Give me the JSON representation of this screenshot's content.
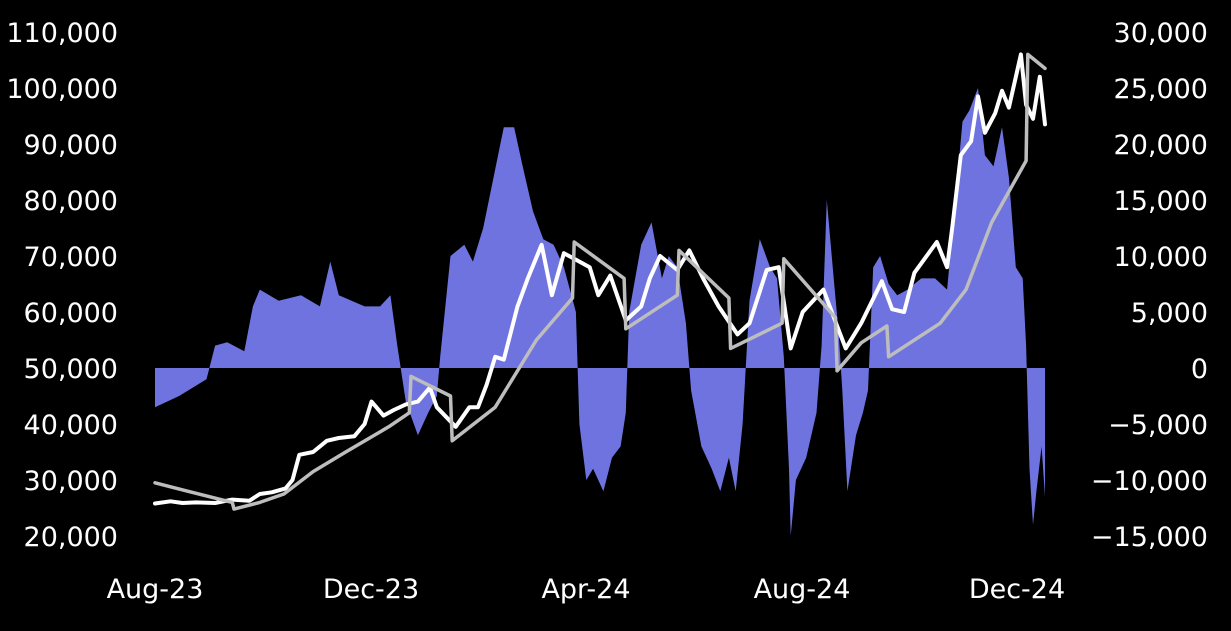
{
  "chart_data": {
    "type": "line",
    "title": "",
    "xlabel": "",
    "ylabel_left": "",
    "ylabel_right": "",
    "grid": false,
    "legend": "none",
    "x_ticks": [
      "Aug-23",
      "Dec-23",
      "Apr-24",
      "Aug-24",
      "Dec-24"
    ],
    "y_left": {
      "lim": [
        20000,
        110000
      ],
      "ticks": [
        "20,000",
        "30,000",
        "40,000",
        "50,000",
        "60,000",
        "70,000",
        "80,000",
        "90,000",
        "100,000",
        "110,000"
      ]
    },
    "y_right": {
      "lim": [
        -15000,
        30000
      ],
      "ticks": [
        "−15,000",
        "−10,000",
        "−5,000",
        "0",
        "5,000",
        "10,000",
        "15,000",
        "20,000",
        "25,000",
        "30,000"
      ]
    },
    "x_range": [
      "2023-08-01",
      "2024-12-31"
    ],
    "series": [
      {
        "type": "area",
        "axis": "right",
        "color": "#6f73e0",
        "points": [
          [
            "2023-08-01",
            -3500
          ],
          [
            "2023-08-15",
            -2500
          ],
          [
            "2023-08-31",
            -1000
          ],
          [
            "2023-09-05",
            2000
          ],
          [
            "2023-09-12",
            2300
          ],
          [
            "2023-09-22",
            1500
          ],
          [
            "2023-09-27",
            5500
          ],
          [
            "2023-10-01",
            7000
          ],
          [
            "2023-10-12",
            6000
          ],
          [
            "2023-10-25",
            6500
          ],
          [
            "2023-11-05",
            5500
          ],
          [
            "2023-11-11",
            9500
          ],
          [
            "2023-11-16",
            6500
          ],
          [
            "2023-12-01",
            5500
          ],
          [
            "2023-12-10",
            5500
          ],
          [
            "2023-12-16",
            6500
          ],
          [
            "2023-12-20",
            2000
          ],
          [
            "2023-12-25",
            -3000
          ],
          [
            "2024-01-01",
            -6000
          ],
          [
            "2024-01-07",
            -4000
          ],
          [
            "2024-01-12",
            -2500
          ],
          [
            "2024-01-14",
            1000
          ],
          [
            "2024-01-20",
            10000
          ],
          [
            "2024-01-28",
            11000
          ],
          [
            "2024-02-02",
            9500
          ],
          [
            "2024-02-08",
            12500
          ],
          [
            "2024-02-14",
            17000
          ],
          [
            "2024-02-20",
            21500
          ],
          [
            "2024-02-26",
            21500
          ],
          [
            "2024-03-02",
            18000
          ],
          [
            "2024-03-08",
            14000
          ],
          [
            "2024-03-14",
            11500
          ],
          [
            "2024-03-20",
            11000
          ],
          [
            "2024-03-26",
            9000
          ],
          [
            "2024-04-02",
            5000
          ],
          [
            "2024-04-04",
            -5000
          ],
          [
            "2024-04-08",
            -10000
          ],
          [
            "2024-04-12",
            -9000
          ],
          [
            "2024-04-18",
            -11000
          ],
          [
            "2024-04-23",
            -8000
          ],
          [
            "2024-04-28",
            -7000
          ],
          [
            "2024-05-01",
            -4000
          ],
          [
            "2024-05-03",
            5000
          ],
          [
            "2024-05-10",
            11000
          ],
          [
            "2024-05-16",
            13000
          ],
          [
            "2024-05-22",
            8000
          ],
          [
            "2024-05-26",
            10000
          ],
          [
            "2024-05-31",
            9000
          ],
          [
            "2024-06-05",
            4000
          ],
          [
            "2024-06-08",
            -2000
          ],
          [
            "2024-06-14",
            -7000
          ],
          [
            "2024-06-20",
            -9000
          ],
          [
            "2024-06-25",
            -11000
          ],
          [
            "2024-06-30",
            -8000
          ],
          [
            "2024-07-04",
            -11000
          ],
          [
            "2024-07-08",
            -5000
          ],
          [
            "2024-07-12",
            6000
          ],
          [
            "2024-07-18",
            11500
          ],
          [
            "2024-07-24",
            9000
          ],
          [
            "2024-07-28",
            8000
          ],
          [
            "2024-08-01",
            1000
          ],
          [
            "2024-08-04",
            -9000
          ],
          [
            "2024-08-05",
            -15000
          ],
          [
            "2024-08-08",
            -10000
          ],
          [
            "2024-08-14",
            -8000
          ],
          [
            "2024-08-20",
            -4000
          ],
          [
            "2024-08-23",
            2000
          ],
          [
            "2024-08-26",
            15000
          ],
          [
            "2024-08-30",
            8000
          ],
          [
            "2024-09-02",
            3000
          ],
          [
            "2024-09-04",
            -2000
          ],
          [
            "2024-09-07",
            -11000
          ],
          [
            "2024-09-12",
            -6000
          ],
          [
            "2024-09-16",
            -4000
          ],
          [
            "2024-09-19",
            -2000
          ],
          [
            "2024-09-22",
            9000
          ],
          [
            "2024-09-26",
            10000
          ],
          [
            "2024-10-01",
            7500
          ],
          [
            "2024-10-06",
            6500
          ],
          [
            "2024-10-12",
            7000
          ],
          [
            "2024-10-20",
            8000
          ],
          [
            "2024-10-28",
            8000
          ],
          [
            "2024-11-04",
            7000
          ],
          [
            "2024-11-10",
            17000
          ],
          [
            "2024-11-13",
            22000
          ],
          [
            "2024-11-17",
            23000
          ],
          [
            "2024-11-22",
            25000
          ],
          [
            "2024-11-26",
            19000
          ],
          [
            "2024-12-01",
            18000
          ],
          [
            "2024-12-06",
            21500
          ],
          [
            "2024-12-10",
            17000
          ],
          [
            "2024-12-14",
            9000
          ],
          [
            "2024-12-18",
            8000
          ],
          [
            "2024-12-20",
            2000
          ],
          [
            "2024-12-22",
            -9000
          ],
          [
            "2024-12-24",
            -14000
          ],
          [
            "2024-12-26",
            -11000
          ],
          [
            "2024-12-29",
            -7000
          ],
          [
            "2024-12-31",
            -11500
          ]
        ]
      },
      {
        "type": "line",
        "axis": "left",
        "color": "#ffffff",
        "points": [
          [
            "2023-08-01",
            25800
          ],
          [
            "2023-08-10",
            26200
          ],
          [
            "2023-08-17",
            25900
          ],
          [
            "2023-08-25",
            26000
          ],
          [
            "2023-09-05",
            25900
          ],
          [
            "2023-09-15",
            26500
          ],
          [
            "2023-09-25",
            26300
          ],
          [
            "2023-10-01",
            27500
          ],
          [
            "2023-10-08",
            27800
          ],
          [
            "2023-10-16",
            28500
          ],
          [
            "2023-10-20",
            30000
          ],
          [
            "2023-10-24",
            34500
          ],
          [
            "2023-11-01",
            35000
          ],
          [
            "2023-11-09",
            37000
          ],
          [
            "2023-11-16",
            37500
          ],
          [
            "2023-11-25",
            37800
          ],
          [
            "2023-12-01",
            40000
          ],
          [
            "2023-12-05",
            44000
          ],
          [
            "2023-12-12",
            41500
          ],
          [
            "2023-12-18",
            42500
          ],
          [
            "2023-12-25",
            43500
          ],
          [
            "2024-01-01",
            44000
          ],
          [
            "2024-01-08",
            46500
          ],
          [
            "2024-01-12",
            43000
          ],
          [
            "2024-01-23",
            39500
          ],
          [
            "2024-01-31",
            43000
          ],
          [
            "2024-02-05",
            43000
          ],
          [
            "2024-02-10",
            47000
          ],
          [
            "2024-02-15",
            52000
          ],
          [
            "2024-02-20",
            51500
          ],
          [
            "2024-02-28",
            61000
          ],
          [
            "2024-03-05",
            66000
          ],
          [
            "2024-03-13",
            72000
          ],
          [
            "2024-03-19",
            63000
          ],
          [
            "2024-03-26",
            70500
          ],
          [
            "2024-04-01",
            69500
          ],
          [
            "2024-04-10",
            68000
          ],
          [
            "2024-04-15",
            63000
          ],
          [
            "2024-04-22",
            66500
          ],
          [
            "2024-05-01",
            58500
          ],
          [
            "2024-05-10",
            61000
          ],
          [
            "2024-05-15",
            66000
          ],
          [
            "2024-05-21",
            70000
          ],
          [
            "2024-05-31",
            67500
          ],
          [
            "2024-06-07",
            71000
          ],
          [
            "2024-06-15",
            66000
          ],
          [
            "2024-06-24",
            61000
          ],
          [
            "2024-07-05",
            56000
          ],
          [
            "2024-07-12",
            58000
          ],
          [
            "2024-07-22",
            67500
          ],
          [
            "2024-07-29",
            68000
          ],
          [
            "2024-08-05",
            53500
          ],
          [
            "2024-08-12",
            60000
          ],
          [
            "2024-08-24",
            64000
          ],
          [
            "2024-09-01",
            57500
          ],
          [
            "2024-09-06",
            53500
          ],
          [
            "2024-09-15",
            58000
          ],
          [
            "2024-09-27",
            65500
          ],
          [
            "2024-10-03",
            60500
          ],
          [
            "2024-10-10",
            60000
          ],
          [
            "2024-10-16",
            67000
          ],
          [
            "2024-10-29",
            72500
          ],
          [
            "2024-11-04",
            68000
          ],
          [
            "2024-11-07",
            75000
          ],
          [
            "2024-11-12",
            88000
          ],
          [
            "2024-11-18",
            90500
          ],
          [
            "2024-11-22",
            98500
          ],
          [
            "2024-11-26",
            92000
          ],
          [
            "2024-12-02",
            95500
          ],
          [
            "2024-12-06",
            99500
          ],
          [
            "2024-12-10",
            96500
          ],
          [
            "2024-12-17",
            106000
          ],
          [
            "2024-12-20",
            97000
          ],
          [
            "2024-12-24",
            94500
          ],
          [
            "2024-12-28",
            102000
          ],
          [
            "2024-12-31",
            93500
          ]
        ]
      },
      {
        "type": "line",
        "axis": "left",
        "color": "#bdbdbd",
        "points": [
          [
            "2023-08-01",
            29500
          ],
          [
            "2023-08-20",
            28000
          ],
          [
            "2023-09-15",
            26000
          ],
          [
            "2023-09-16",
            24800
          ],
          [
            "2023-10-01",
            26000
          ],
          [
            "2023-10-15",
            27500
          ],
          [
            "2023-11-01",
            31500
          ],
          [
            "2023-11-20",
            35000
          ],
          [
            "2023-12-15",
            39500
          ],
          [
            "2023-12-27",
            42000
          ],
          [
            "2023-12-28",
            48500
          ],
          [
            "2024-01-20",
            45000
          ],
          [
            "2024-01-21",
            37000
          ],
          [
            "2024-02-15",
            43000
          ],
          [
            "2024-03-10",
            55000
          ],
          [
            "2024-03-31",
            62500
          ],
          [
            "2024-04-01",
            72500
          ],
          [
            "2024-04-30",
            66000
          ],
          [
            "2024-05-01",
            57000
          ],
          [
            "2024-05-31",
            63000
          ],
          [
            "2024-06-01",
            71000
          ],
          [
            "2024-06-30",
            62500
          ],
          [
            "2024-07-01",
            53500
          ],
          [
            "2024-07-31",
            58000
          ],
          [
            "2024-08-01",
            69500
          ],
          [
            "2024-08-31",
            59000
          ],
          [
            "2024-09-01",
            49500
          ],
          [
            "2024-09-15",
            54500
          ],
          [
            "2024-09-30",
            57500
          ],
          [
            "2024-10-01",
            52000
          ],
          [
            "2024-10-31",
            58000
          ],
          [
            "2024-11-15",
            64000
          ],
          [
            "2024-11-30",
            76000
          ],
          [
            "2024-12-20",
            87000
          ],
          [
            "2024-12-21",
            106000
          ],
          [
            "2024-12-31",
            103500
          ]
        ]
      }
    ]
  }
}
